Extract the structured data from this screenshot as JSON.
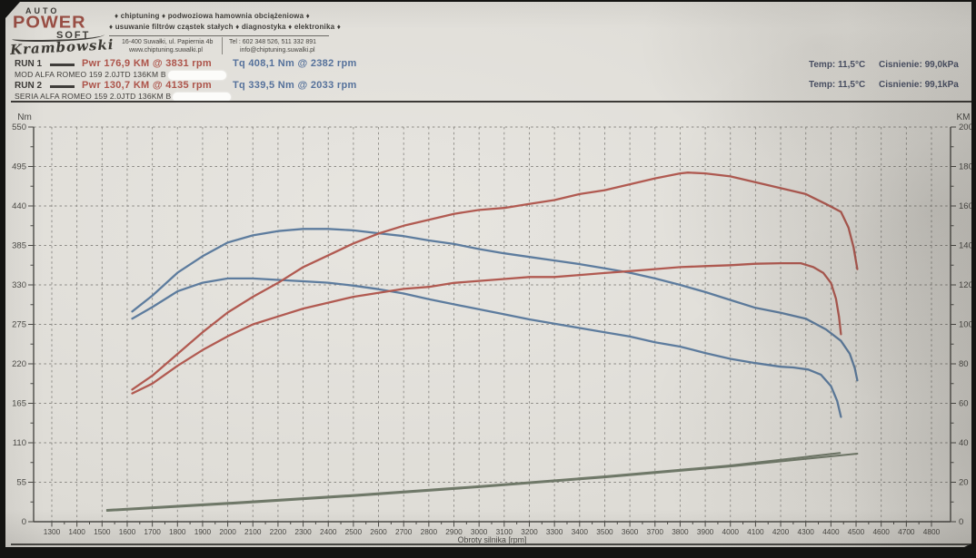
{
  "header": {
    "logo": {
      "auto": "AUTO",
      "power": "POWER",
      "soft": "SOFT",
      "signature": "Krambowski"
    },
    "services_line1": "♦ chiptuning ♦ podwoziowa hamownia obciążeniowa ♦",
    "services_line2": "♦ usuwanie filtrów cząstek stałych ♦ diagnostyka ♦ elektronika ♦",
    "contact": {
      "address": "16-400 Suwałki, ul. Papiernia 4b",
      "website": "www.chiptuning.suwalki.pl",
      "phone": "Tel : 602 348 526, 511 332 891",
      "email": "info@chiptuning.suwalki.pl"
    }
  },
  "runs": [
    {
      "label": "RUN 1",
      "power": "Pwr 176,9 KM @ 3831 rpm",
      "torque": "Tq 408,1 Nm @ 2382 rpm",
      "vehicle": "MOD ALFA ROMEO 159 2.0JTD 136KM B",
      "temp": "Temp: 11,5°C",
      "pressure": "Cisnienie: 99,0kPa"
    },
    {
      "label": "RUN 2",
      "power": "Pwr 130,7 KM @ 4135 rpm",
      "torque": "Tq 339,5 Nm @ 2033 rpm",
      "vehicle": "SERIA ALFA ROMEO 159 2.0JTD 136KM B",
      "temp": "Temp: 11,5°C",
      "pressure": "Cisnienie: 99,1kPa"
    }
  ],
  "colors": {
    "power_curve": "#b15a51",
    "torque_curve": "#5d7c9e",
    "loss_curve": "#6f7868",
    "axis": "#4b4a46",
    "grid": "#8b8984",
    "power_text": "#ad544a",
    "torque_text": "#55719b"
  },
  "chart_data": {
    "type": "line",
    "xlabel": "Obroty silnika [rpm]",
    "x_range": [
      1300,
      4800
    ],
    "x_tick_step": 100,
    "x_minor_step": 50,
    "grid": "dashed",
    "y_left": {
      "label": "Nm",
      "range": [
        0,
        550
      ],
      "tick_step": 55,
      "minor_step": 27.5
    },
    "y_right": {
      "label": "KM",
      "range": [
        0,
        200
      ],
      "tick_step": 20,
      "minor_step": 10
    },
    "series": [
      {
        "name": "run1-mod-loss",
        "axis": "right",
        "unit": "KM",
        "color": "#6f7868",
        "width": 2,
        "points": [
          [
            1520,
            5.5
          ],
          [
            2000,
            9
          ],
          [
            2500,
            13
          ],
          [
            3000,
            17.5
          ],
          [
            3500,
            22.5
          ],
          [
            4000,
            28
          ],
          [
            4505,
            34.5
          ]
        ]
      },
      {
        "name": "run2-seria-loss",
        "axis": "right",
        "unit": "KM",
        "color": "#6f7868",
        "width": 2,
        "points": [
          [
            1520,
            6
          ],
          [
            2000,
            9.5
          ],
          [
            2500,
            13.5
          ],
          [
            3000,
            18
          ],
          [
            3500,
            23
          ],
          [
            4000,
            28.5
          ],
          [
            4436,
            34.8
          ]
        ]
      },
      {
        "name": "run1-mod-torque",
        "axis": "left",
        "unit": "Nm",
        "color": "#5d7c9e",
        "width": 2.3,
        "peak": "408,1 Nm @ 2382 rpm",
        "points": [
          [
            1620,
            293
          ],
          [
            1700,
            315
          ],
          [
            1800,
            347
          ],
          [
            1900,
            370
          ],
          [
            2000,
            389
          ],
          [
            2100,
            399
          ],
          [
            2200,
            405
          ],
          [
            2300,
            408
          ],
          [
            2400,
            408
          ],
          [
            2500,
            406
          ],
          [
            2600,
            402
          ],
          [
            2700,
            398
          ],
          [
            2800,
            392
          ],
          [
            2900,
            387
          ],
          [
            3000,
            380
          ],
          [
            3100,
            374
          ],
          [
            3200,
            369
          ],
          [
            3300,
            364
          ],
          [
            3400,
            359
          ],
          [
            3500,
            353
          ],
          [
            3600,
            347
          ],
          [
            3700,
            339
          ],
          [
            3800,
            330
          ],
          [
            3900,
            320
          ],
          [
            4000,
            309
          ],
          [
            4100,
            298
          ],
          [
            4200,
            291
          ],
          [
            4300,
            283
          ],
          [
            4380,
            268
          ],
          [
            4440,
            252
          ],
          [
            4475,
            234
          ],
          [
            4495,
            214
          ],
          [
            4505,
            197
          ]
        ]
      },
      {
        "name": "run2-seria-torque",
        "axis": "left",
        "unit": "Nm",
        "color": "#5d7c9e",
        "width": 2.3,
        "peak": "339,5 Nm @ 2033 rpm",
        "points": [
          [
            1620,
            283
          ],
          [
            1700,
            299
          ],
          [
            1800,
            321
          ],
          [
            1900,
            333
          ],
          [
            2000,
            339
          ],
          [
            2100,
            339
          ],
          [
            2200,
            337
          ],
          [
            2300,
            335
          ],
          [
            2400,
            333
          ],
          [
            2500,
            329
          ],
          [
            2600,
            324
          ],
          [
            2700,
            318
          ],
          [
            2800,
            310
          ],
          [
            2900,
            303
          ],
          [
            3000,
            296
          ],
          [
            3100,
            289
          ],
          [
            3200,
            282
          ],
          [
            3300,
            276
          ],
          [
            3400,
            270
          ],
          [
            3500,
            264
          ],
          [
            3600,
            258
          ],
          [
            3700,
            250
          ],
          [
            3800,
            244
          ],
          [
            3900,
            235
          ],
          [
            4000,
            227
          ],
          [
            4100,
            221
          ],
          [
            4200,
            216
          ],
          [
            4250,
            215
          ],
          [
            4310,
            212
          ],
          [
            4360,
            205
          ],
          [
            4400,
            189
          ],
          [
            4425,
            168
          ],
          [
            4440,
            146
          ]
        ]
      },
      {
        "name": "run1-mod-power",
        "axis": "right",
        "unit": "KM",
        "color": "#b15a51",
        "width": 2.3,
        "peak": "176,9 KM @ 3831 rpm",
        "points": [
          [
            1620,
            67
          ],
          [
            1700,
            74
          ],
          [
            1800,
            85
          ],
          [
            1900,
            96
          ],
          [
            2000,
            106
          ],
          [
            2100,
            114
          ],
          [
            2200,
            121
          ],
          [
            2300,
            129
          ],
          [
            2400,
            135
          ],
          [
            2500,
            141
          ],
          [
            2600,
            146
          ],
          [
            2700,
            150
          ],
          [
            2800,
            153
          ],
          [
            2900,
            156
          ],
          [
            3000,
            158
          ],
          [
            3100,
            159
          ],
          [
            3200,
            161
          ],
          [
            3300,
            163
          ],
          [
            3400,
            166
          ],
          [
            3500,
            168
          ],
          [
            3600,
            171
          ],
          [
            3700,
            174
          ],
          [
            3800,
            176.5
          ],
          [
            3831,
            176.9
          ],
          [
            3900,
            176.5
          ],
          [
            4000,
            175
          ],
          [
            4100,
            172
          ],
          [
            4200,
            169
          ],
          [
            4300,
            166
          ],
          [
            4380,
            161
          ],
          [
            4440,
            157
          ],
          [
            4470,
            149
          ],
          [
            4490,
            139
          ],
          [
            4505,
            128
          ]
        ]
      },
      {
        "name": "run2-seria-power",
        "axis": "right",
        "unit": "KM",
        "color": "#b15a51",
        "width": 2.3,
        "peak": "130,7 KM @ 4135 rpm",
        "points": [
          [
            1620,
            65
          ],
          [
            1700,
            70
          ],
          [
            1800,
            79
          ],
          [
            1900,
            87
          ],
          [
            2000,
            94
          ],
          [
            2100,
            100
          ],
          [
            2200,
            104
          ],
          [
            2300,
            108
          ],
          [
            2400,
            111
          ],
          [
            2500,
            114
          ],
          [
            2600,
            116
          ],
          [
            2700,
            118
          ],
          [
            2800,
            119
          ],
          [
            2900,
            121
          ],
          [
            3000,
            122
          ],
          [
            3100,
            123
          ],
          [
            3200,
            124
          ],
          [
            3300,
            124
          ],
          [
            3400,
            125
          ],
          [
            3500,
            126
          ],
          [
            3600,
            127
          ],
          [
            3700,
            128
          ],
          [
            3800,
            129
          ],
          [
            3900,
            129.5
          ],
          [
            4000,
            130
          ],
          [
            4100,
            130.7
          ],
          [
            4200,
            131
          ],
          [
            4280,
            131
          ],
          [
            4330,
            129
          ],
          [
            4370,
            126
          ],
          [
            4400,
            121
          ],
          [
            4420,
            113
          ],
          [
            4432,
            104
          ],
          [
            4440,
            95
          ]
        ]
      }
    ]
  }
}
